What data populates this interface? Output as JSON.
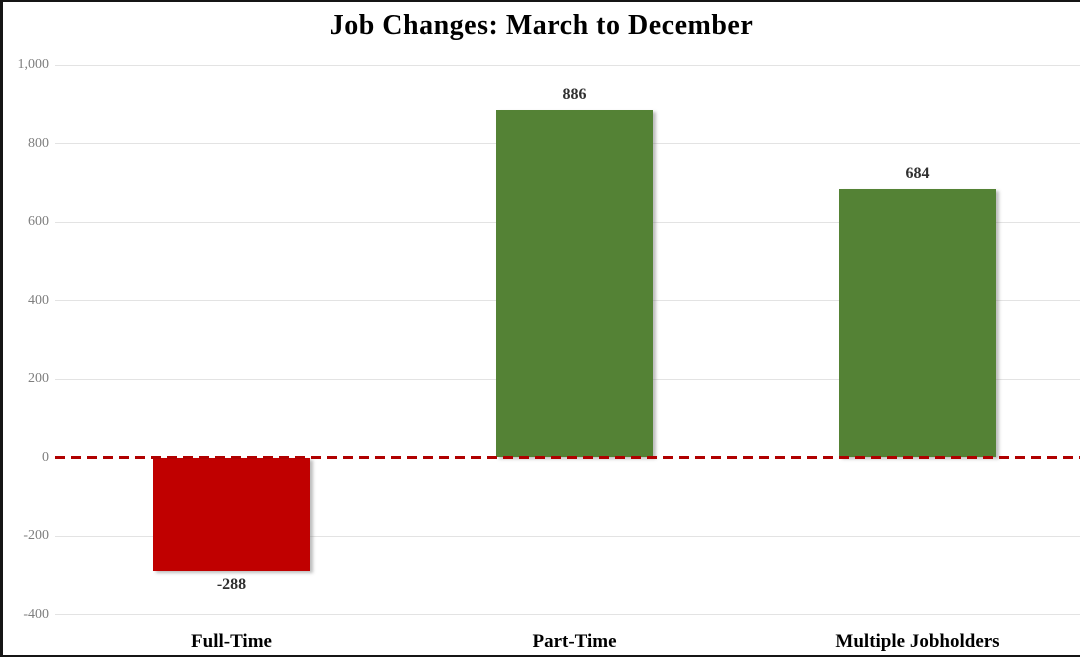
{
  "chart_data": {
    "type": "bar",
    "title": "Job Changes: March to December",
    "xlabel": "",
    "ylabel": "",
    "categories": [
      "Full-Time",
      "Part-Time",
      "Multiple Jobholders"
    ],
    "values": [
      -288,
      886,
      684
    ],
    "value_labels": [
      "-288",
      "886",
      "684"
    ],
    "bar_colors": [
      "#c00000",
      "#548235",
      "#548235"
    ],
    "ylim": [
      -400,
      1000
    ],
    "yticks": [
      {
        "value": 1000,
        "label": "1,000"
      },
      {
        "value": 800,
        "label": "800"
      },
      {
        "value": 600,
        "label": "600"
      },
      {
        "value": 400,
        "label": "400"
      },
      {
        "value": 200,
        "label": "200"
      },
      {
        "value": 0,
        "label": "0"
      },
      {
        "value": -200,
        "label": "-200"
      },
      {
        "value": -400,
        "label": "-400"
      }
    ],
    "grid": true,
    "legend_position": "none",
    "zero_line": {
      "style": "dashed",
      "color": "#b00000"
    },
    "colors": {
      "negative_bar": "#c00000",
      "positive_bar": "#548235",
      "gridline": "#e3e3e3",
      "tick_label": "#7f7f7f",
      "value_label": "#303030",
      "title": "#000000",
      "frame_border": "#151515"
    }
  }
}
